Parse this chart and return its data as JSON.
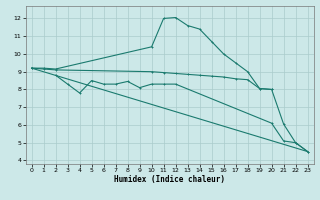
{
  "bg_color": "#cce8e8",
  "grid_color": "#aacccc",
  "line_color": "#1a7a6e",
  "xlabel": "Humidex (Indice chaleur)",
  "xlim": [
    -0.5,
    23.5
  ],
  "ylim": [
    3.8,
    12.7
  ],
  "yticks": [
    4,
    5,
    6,
    7,
    8,
    9,
    10,
    11,
    12
  ],
  "xticks": [
    0,
    1,
    2,
    3,
    4,
    5,
    6,
    7,
    8,
    9,
    10,
    11,
    12,
    13,
    14,
    15,
    16,
    17,
    18,
    19,
    20,
    21,
    22,
    23
  ],
  "line1_x": [
    0,
    1,
    2,
    10,
    11,
    12,
    13,
    14,
    15,
    16,
    17,
    18,
    19,
    20,
    21,
    22,
    23
  ],
  "line1_y": [
    9.2,
    9.2,
    9.15,
    10.4,
    12.0,
    12.05,
    11.6,
    11.4,
    10.7,
    10.0,
    9.5,
    9.0,
    8.05,
    8.0,
    6.05,
    5.0,
    4.5
  ],
  "line2_x": [
    0,
    1,
    2,
    10,
    11,
    12,
    13,
    14,
    15,
    16,
    17,
    18,
    19,
    20
  ],
  "line2_y": [
    9.2,
    9.15,
    9.1,
    9.0,
    8.95,
    8.9,
    8.85,
    8.8,
    8.75,
    8.7,
    8.6,
    8.55,
    8.05,
    8.0
  ],
  "line3_x": [
    2,
    3,
    4,
    5,
    6,
    7,
    8,
    9,
    10,
    11,
    12,
    20,
    21,
    22,
    23
  ],
  "line3_y": [
    8.8,
    8.3,
    7.8,
    8.5,
    8.3,
    8.3,
    8.45,
    8.1,
    8.3,
    8.3,
    8.3,
    6.1,
    5.1,
    5.0,
    4.5
  ],
  "line4_x": [
    0,
    23
  ],
  "line4_y": [
    9.2,
    4.5
  ]
}
